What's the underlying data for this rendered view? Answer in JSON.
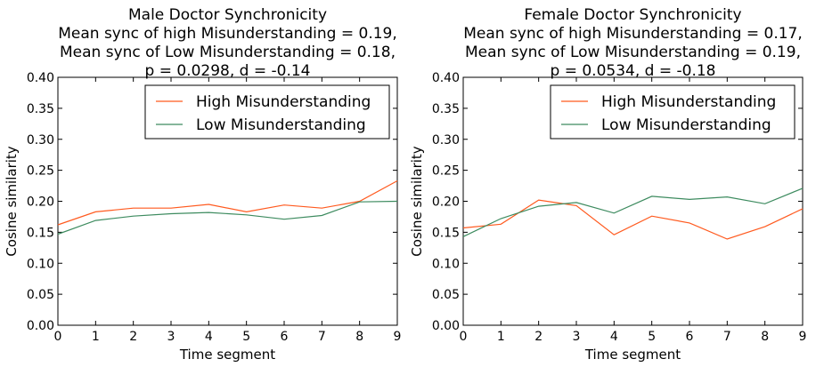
{
  "chart_data": [
    {
      "type": "line",
      "title_lines": [
        "Male Doctor Synchronicity",
        "Mean sync of high Misunderstanding = 0.19,",
        "Mean sync of Low Misunderstanding = 0.18,",
        "p = 0.0298, d = -0.14"
      ],
      "xlabel": "Time segment",
      "ylabel": "Cosine similarity",
      "x": [
        0,
        1,
        2,
        3,
        4,
        5,
        6,
        7,
        8,
        9
      ],
      "xlim": [
        0,
        9
      ],
      "ylim": [
        0,
        0.4
      ],
      "xticks": [
        "0",
        "1",
        "2",
        "3",
        "4",
        "5",
        "6",
        "7",
        "8",
        "9"
      ],
      "yticks": [
        "0.00",
        "0.05",
        "0.10",
        "0.15",
        "0.20",
        "0.25",
        "0.30",
        "0.35",
        "0.40"
      ],
      "legend_position": "top-right",
      "grid": false,
      "series": [
        {
          "name": "High Misunderstanding",
          "color": "#ff5a1f",
          "values": [
            0.162,
            0.183,
            0.189,
            0.189,
            0.195,
            0.183,
            0.194,
            0.189,
            0.2,
            0.233
          ]
        },
        {
          "name": "Low Misunderstanding",
          "color": "#3d8b5f",
          "values": [
            0.147,
            0.169,
            0.176,
            0.18,
            0.182,
            0.178,
            0.171,
            0.177,
            0.199,
            0.2
          ]
        }
      ]
    },
    {
      "type": "line",
      "title_lines": [
        "Female Doctor Synchronicity",
        "Mean sync of high Misunderstanding = 0.17,",
        "Mean sync of Low Misunderstanding = 0.19,",
        "p = 0.0534, d = -0.18"
      ],
      "xlabel": "Time segment",
      "ylabel": "Cosine similarity",
      "x": [
        0,
        1,
        2,
        3,
        4,
        5,
        6,
        7,
        8,
        9
      ],
      "xlim": [
        0,
        9
      ],
      "ylim": [
        0,
        0.4
      ],
      "xticks": [
        "0",
        "1",
        "2",
        "3",
        "4",
        "5",
        "6",
        "7",
        "8",
        "9"
      ],
      "yticks": [
        "0.00",
        "0.05",
        "0.10",
        "0.15",
        "0.20",
        "0.25",
        "0.30",
        "0.35",
        "0.40"
      ],
      "legend_position": "top-right",
      "grid": false,
      "series": [
        {
          "name": "High Misunderstanding",
          "color": "#ff5a1f",
          "values": [
            0.157,
            0.163,
            0.202,
            0.193,
            0.146,
            0.176,
            0.165,
            0.139,
            0.159,
            0.188
          ]
        },
        {
          "name": "Low Misunderstanding",
          "color": "#3d8b5f",
          "values": [
            0.143,
            0.172,
            0.192,
            0.198,
            0.181,
            0.208,
            0.203,
            0.207,
            0.196,
            0.221
          ]
        }
      ]
    }
  ]
}
